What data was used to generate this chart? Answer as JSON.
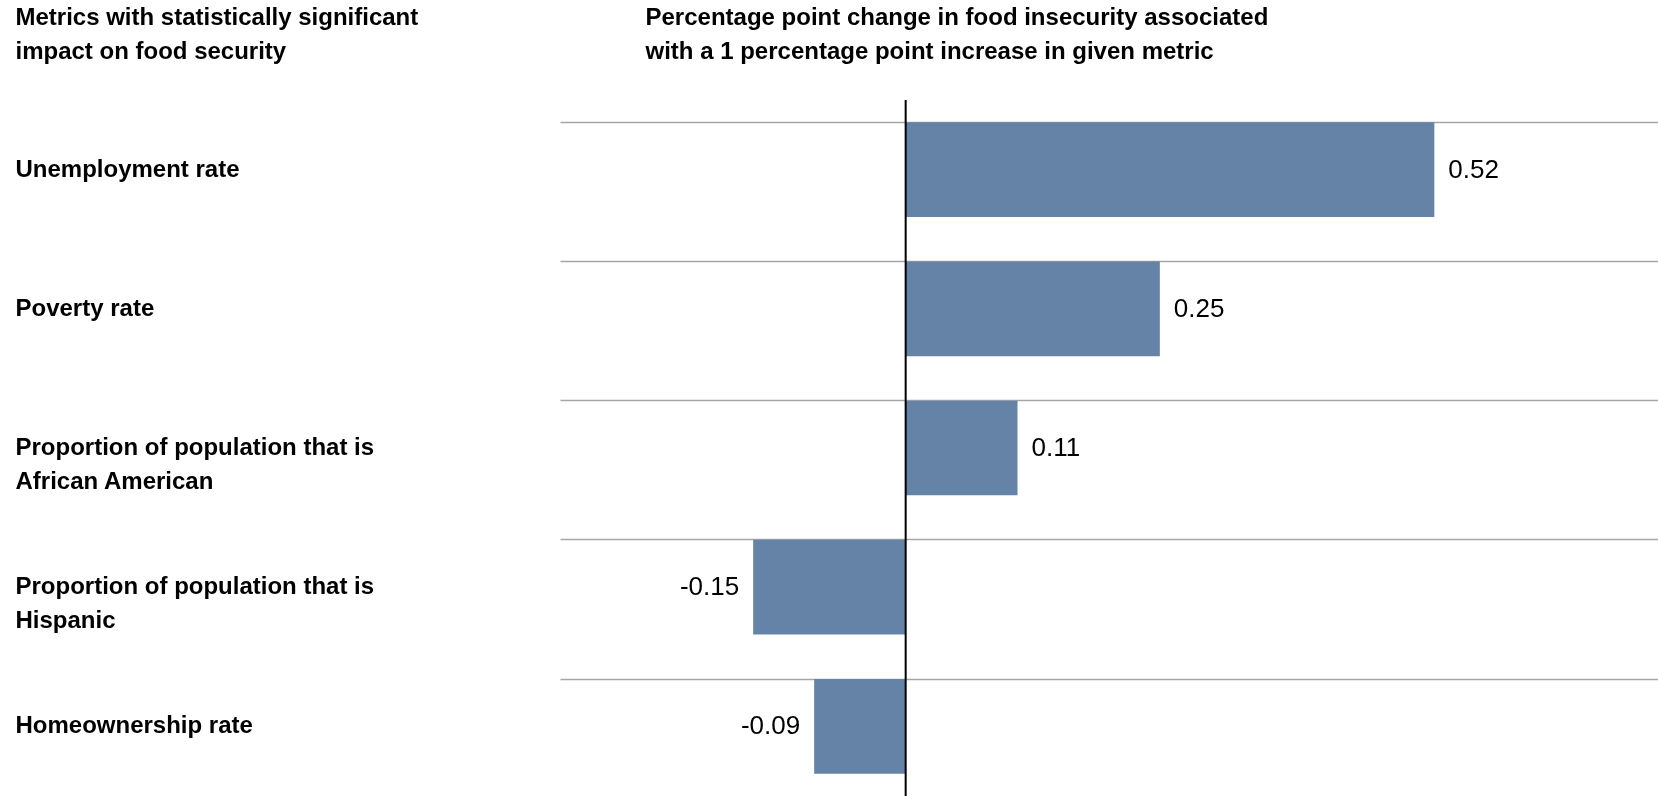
{
  "chart_data": {
    "type": "bar",
    "orientation": "horizontal",
    "ylabel": "Metrics with statistically significant impact on food security",
    "xlabel": "Percentage point change in food insecurity associated with  a 1 percentage point increase in given metric",
    "categories": [
      "Unemployment rate",
      "Poverty rate",
      "Proportion of population that is African American",
      "Proportion of population that is Hispanic",
      "Homeownership rate"
    ],
    "values": [
      0.52,
      0.25,
      0.11,
      -0.15,
      -0.09
    ],
    "color": "#6483a7",
    "xlim": [
      -0.34,
      0.74
    ],
    "data_labels": true,
    "grid": "y",
    "ref_lines": [
      {
        "axis": "x",
        "value": 0,
        "color": "#000000"
      }
    ]
  }
}
